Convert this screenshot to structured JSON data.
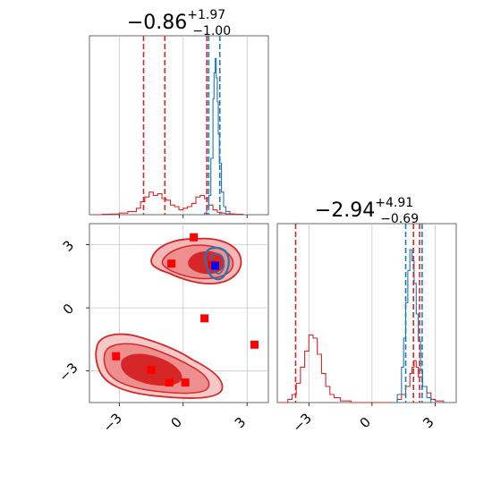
{
  "chart_data": [
    {
      "type": "histogram",
      "panel": "marginal-x",
      "title": {
        "main": "−0.86",
        "sup": "+1.97",
        "sub": "−1.00"
      },
      "xlim": [
        -4.4,
        4.0
      ],
      "grid": true,
      "tick_values": [
        -3,
        0,
        3
      ],
      "tick_labels": [],
      "series": [
        {
          "color": "#d62728",
          "x": [
            -4.2,
            -3.8,
            -3.4,
            -3.0,
            -2.6,
            -2.2,
            -2.0,
            -1.8,
            -1.6,
            -1.4,
            -1.2,
            -1.0,
            -0.8,
            -0.6,
            -0.4,
            -0.2,
            0.0,
            0.2,
            0.4,
            0.6,
            0.8,
            1.0,
            1.2,
            1.4,
            1.6,
            1.8,
            2.0,
            2.4,
            2.8
          ],
          "density": [
            0,
            0.002,
            0.004,
            0.01,
            0.02,
            0.04,
            0.08,
            0.11,
            0.14,
            0.12,
            0.13,
            0.1,
            0.09,
            0.06,
            0.05,
            0.03,
            0.04,
            0.05,
            0.07,
            0.11,
            0.12,
            0.1,
            0.06,
            0.03,
            0.015,
            0.01,
            0.005,
            0.002,
            0
          ]
        },
        {
          "color": "#1f77b4",
          "x": [
            0.8,
            1.0,
            1.1,
            1.2,
            1.3,
            1.4,
            1.45,
            1.5,
            1.55,
            1.6,
            1.65,
            1.7,
            1.8,
            1.9,
            2.0,
            2.2
          ],
          "density": [
            0,
            0.01,
            0.05,
            0.12,
            0.35,
            0.72,
            0.88,
            0.97,
            0.85,
            0.7,
            0.5,
            0.32,
            0.14,
            0.05,
            0.02,
            0
          ]
        }
      ],
      "markers": [
        {
          "color": "#d62728",
          "x": -1.86
        },
        {
          "color": "#d62728",
          "x": 1.11
        },
        {
          "color": "#d62728",
          "x": -0.86
        },
        {
          "color": "#1f77b4",
          "x": 1.2
        },
        {
          "color": "#1f77b4",
          "x": 1.72
        }
      ]
    },
    {
      "type": "scatter",
      "panel": "joint",
      "xlim": [
        -4.4,
        4.0
      ],
      "ylim": [
        -4.5,
        4.0
      ],
      "grid": true,
      "x_tick_values": [
        -3,
        0,
        3
      ],
      "x_tick_labels": [
        "−3",
        "0",
        "3"
      ],
      "y_tick_values": [
        3,
        0,
        -3
      ],
      "y_tick_labels": [
        "3",
        "0",
        "−3"
      ],
      "red_points": [
        {
          "x": 0.5,
          "y": 3.35
        },
        {
          "x": -0.55,
          "y": 2.1
        },
        {
          "x": 1.35,
          "y": 2.05
        },
        {
          "x": 1.0,
          "y": -0.5
        },
        {
          "x": -3.15,
          "y": -2.3
        },
        {
          "x": 3.35,
          "y": -1.75
        },
        {
          "x": -1.5,
          "y": -2.95
        },
        {
          "x": -0.65,
          "y": -3.55
        },
        {
          "x": 0.1,
          "y": -3.55
        }
      ],
      "blue_points": [
        {
          "x": 1.5,
          "y": 2.0
        }
      ]
    },
    {
      "type": "histogram",
      "panel": "marginal-y",
      "title": {
        "main": "−2.94",
        "sup": "+4.91",
        "sub": "−0.69"
      },
      "xlim": [
        -4.5,
        4.0
      ],
      "grid": true,
      "tick_values": [
        -3,
        0,
        3
      ],
      "tick_labels": [
        "−3",
        "0",
        "3"
      ],
      "series": [
        {
          "color": "#d62728",
          "x": [
            -4.4,
            -4.0,
            -3.8,
            -3.6,
            -3.4,
            -3.2,
            -3.0,
            -2.8,
            -2.6,
            -2.4,
            -2.2,
            -2.0,
            -1.8,
            -1.5,
            -1.0,
            0.0,
            1.0,
            1.2,
            1.4,
            1.6,
            1.8,
            1.9,
            2.0,
            2.1,
            2.2,
            2.4,
            2.6,
            2.8,
            3.0,
            3.4
          ],
          "density": [
            0,
            0.02,
            0.05,
            0.12,
            0.22,
            0.32,
            0.42,
            0.4,
            0.3,
            0.18,
            0.1,
            0.05,
            0.03,
            0.01,
            0,
            0,
            0,
            0.02,
            0.05,
            0.1,
            0.18,
            0.22,
            0.26,
            0.22,
            0.16,
            0.1,
            0.06,
            0.02,
            0.01,
            0
          ]
        },
        {
          "color": "#1f77b4",
          "x": [
            1.0,
            1.2,
            1.4,
            1.5,
            1.6,
            1.7,
            1.8,
            1.9,
            2.0,
            2.1,
            2.2,
            2.3,
            2.4,
            2.6,
            2.8
          ],
          "density": [
            0,
            0.05,
            0.22,
            0.4,
            0.62,
            0.82,
            0.95,
            0.88,
            0.74,
            0.55,
            0.38,
            0.2,
            0.1,
            0.03,
            0
          ]
        }
      ],
      "markers": [
        {
          "color": "#d62728",
          "x": -3.63
        },
        {
          "color": "#d62728",
          "x": 1.97
        },
        {
          "color": "#d62728",
          "x": 2.26
        },
        {
          "color": "#1f77b4",
          "x": 1.6
        },
        {
          "color": "#1f77b4",
          "x": 2.38
        }
      ]
    }
  ]
}
